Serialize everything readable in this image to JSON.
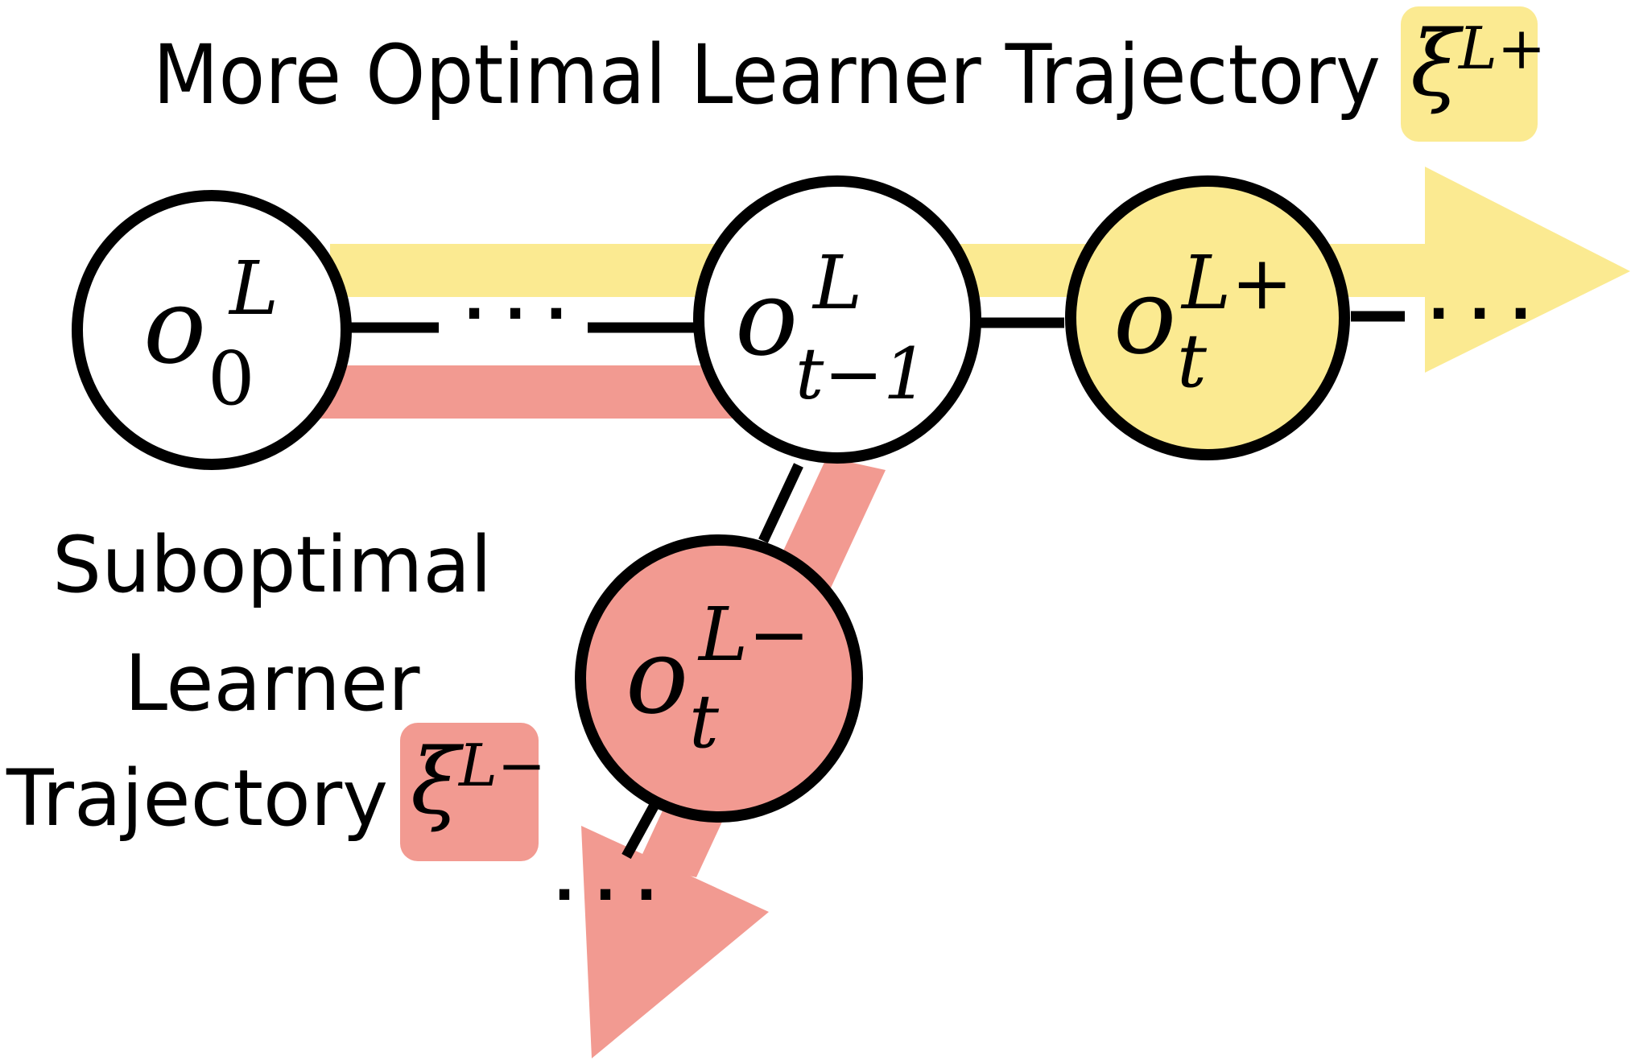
{
  "labels": {
    "more_optimal_title": "More Optimal Learner Trajectory",
    "suboptimal_line1": "Suboptimal",
    "suboptimal_line2": "Learner",
    "suboptimal_line3": "Trajectory",
    "xi": "ξ",
    "xi_plus_sup": "L+",
    "xi_minus_sup": "L−",
    "ellipsis": "· · ·"
  },
  "nodes": {
    "o0": {
      "base": "o",
      "sup": "L",
      "sub": "0"
    },
    "ot1": {
      "base": "o",
      "sup": "L",
      "sub": "t−1"
    },
    "otplus": {
      "base": "o",
      "sup": "L+",
      "sub": "t"
    },
    "otminus": {
      "base": "o",
      "sup": "L−",
      "sub": "t"
    }
  },
  "colors": {
    "optimal_yellow": "#FBEA91",
    "suboptimal_red": "#F29A91",
    "node_fill": "#ffffff",
    "stroke": "#000000"
  }
}
